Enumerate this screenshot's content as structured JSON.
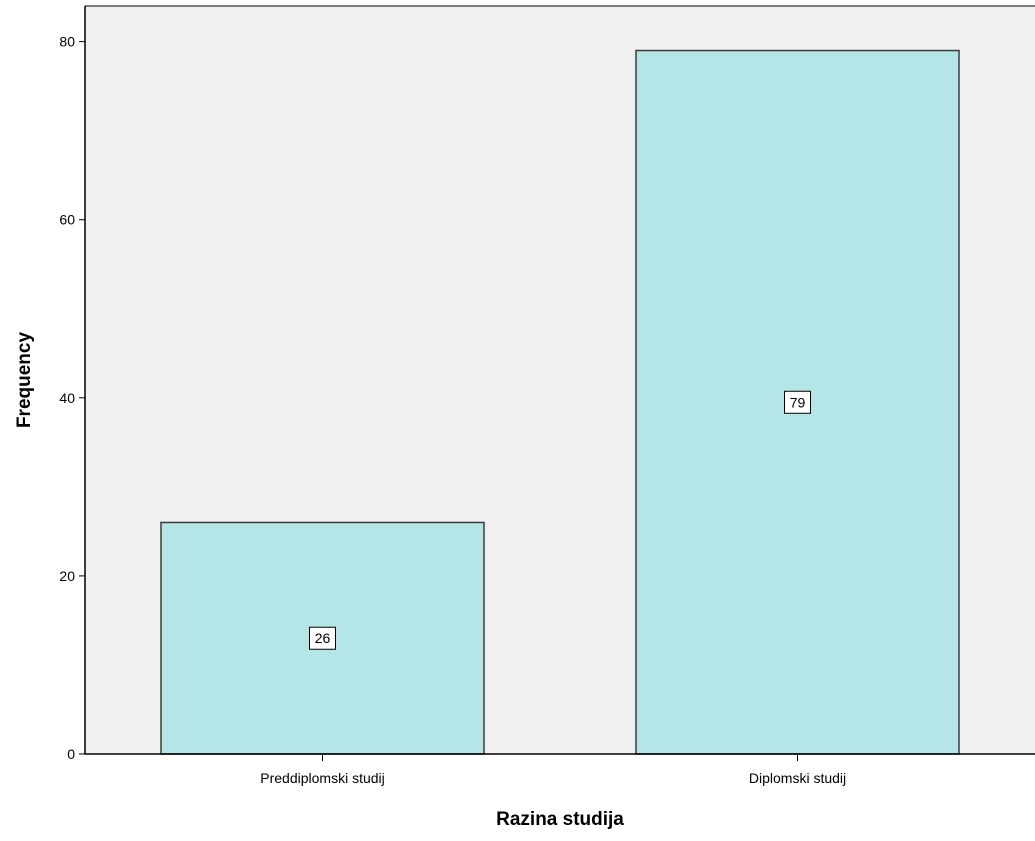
{
  "chart_data": {
    "type": "bar",
    "title": "",
    "xlabel": "Razina studija",
    "ylabel": "Frequency",
    "categories": [
      "Preddiplomski studij",
      "Diplomski studij"
    ],
    "values": [
      26,
      79
    ],
    "data_labels": [
      "26",
      "79"
    ],
    "ylim": [
      0,
      84
    ],
    "yticks": [
      0,
      20,
      40,
      60,
      80
    ],
    "ytick_labels": [
      "0",
      "20",
      "40",
      "60",
      "80"
    ],
    "grid": false,
    "legend": "none",
    "colors": {
      "bar_fill": "#b4e5e7",
      "bar_stroke": "#3c3c3c",
      "plot_background": "#f0f0f0",
      "axis": "#000000"
    }
  }
}
